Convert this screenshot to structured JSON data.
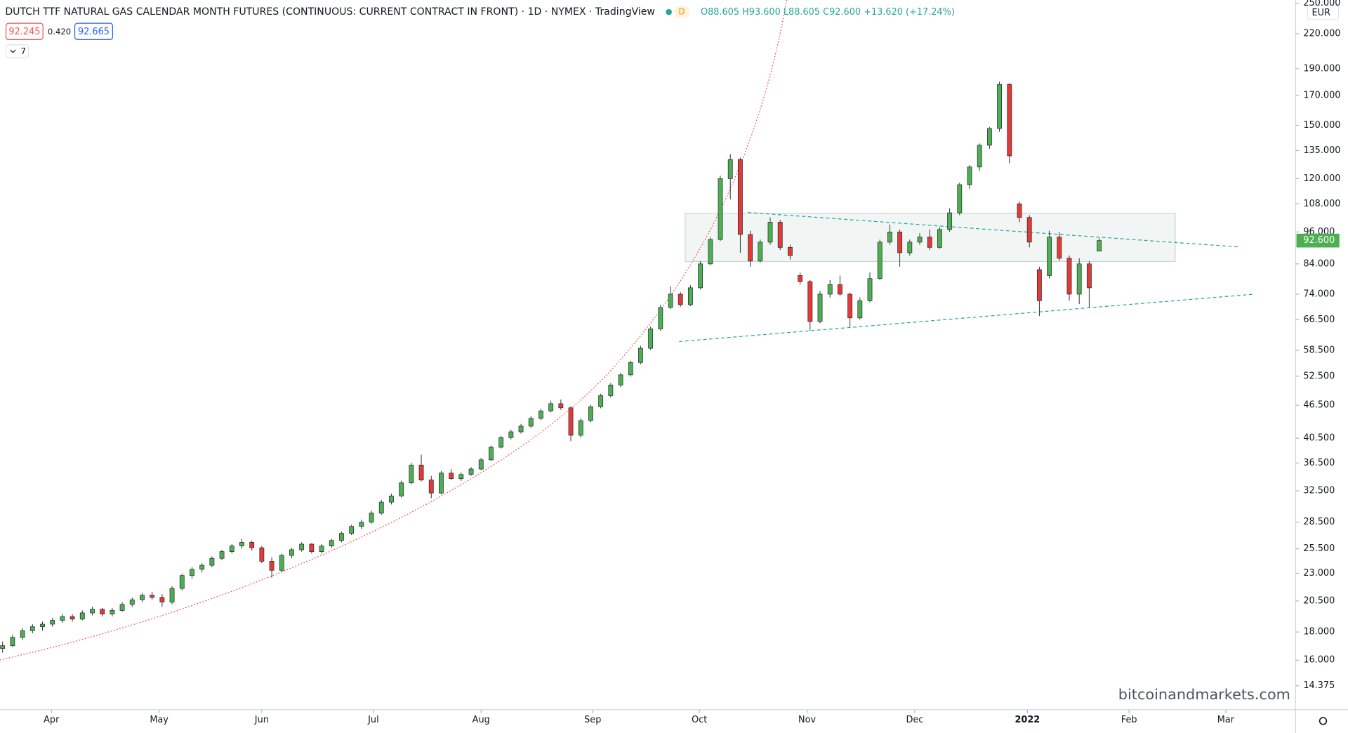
{
  "chart_data": {
    "type": "candlestick",
    "title": "DUTCH TTF NATURAL GAS CALENDAR MONTH FUTURES (CONTINUOUS: CURRENT CONTRACT IN FRONT) · 1D · NYMEX · TradingView",
    "interval_badge": "D",
    "ohlc_legend": {
      "open": "O88.605",
      "high": "H93.600",
      "low": "L88.605",
      "close": "C92.600",
      "change": "+13.620 (+17.24%)"
    },
    "bid": "92.245",
    "spread": "0.420",
    "ask": "92.665",
    "indicators": "7",
    "currency": "EUR",
    "watermark": "bitcoinandmarkets.com",
    "last_price_label": "92.600",
    "up_color": "#4caf50",
    "down_color": "#e53935",
    "log_scale": true,
    "grid": false,
    "ylim": [
      13.0,
      253.4
    ],
    "xlim": [
      -0.26,
      129.7
    ],
    "yticks": [
      {
        "value": 14.375,
        "label": "14.375"
      },
      {
        "value": 16,
        "label": "16.000"
      },
      {
        "value": 18,
        "label": "18.000"
      },
      {
        "value": 20.5,
        "label": "20.500"
      },
      {
        "value": 23,
        "label": "23.000"
      },
      {
        "value": 25.5,
        "label": "25.500"
      },
      {
        "value": 28.5,
        "label": "28.500"
      },
      {
        "value": 32.5,
        "label": "32.500"
      },
      {
        "value": 36.5,
        "label": "36.500"
      },
      {
        "value": 40.5,
        "label": "40.500"
      },
      {
        "value": 46.5,
        "label": "46.500"
      },
      {
        "value": 52.5,
        "label": "52.500"
      },
      {
        "value": 58.5,
        "label": "58.500"
      },
      {
        "value": 66.5,
        "label": "66.500"
      },
      {
        "value": 74,
        "label": "74.000"
      },
      {
        "value": 84,
        "label": "84.000"
      },
      {
        "value": 96,
        "label": "96.000"
      },
      {
        "value": 108,
        "label": "108.000"
      },
      {
        "value": 120,
        "label": "120.000"
      },
      {
        "value": 135,
        "label": "135.000"
      },
      {
        "value": 150,
        "label": "150.000"
      },
      {
        "value": 170,
        "label": "170.000"
      },
      {
        "value": 190,
        "label": "190.000"
      },
      {
        "value": 220,
        "label": "220.000"
      },
      {
        "value": 250,
        "label": "250.000"
      }
    ],
    "xticks": [
      {
        "value": 4.9,
        "label": "Apr"
      },
      {
        "value": 15.7,
        "label": "May"
      },
      {
        "value": 26,
        "label": "Jun"
      },
      {
        "value": 37.2,
        "label": "Jul"
      },
      {
        "value": 48,
        "label": "Aug"
      },
      {
        "value": 59.2,
        "label": "Sep"
      },
      {
        "value": 69.9,
        "label": "Oct"
      },
      {
        "value": 80.7,
        "label": "Nov"
      },
      {
        "value": 91.5,
        "label": "Dec"
      },
      {
        "value": 102.8,
        "label": "2022"
      },
      {
        "value": 113,
        "label": "Feb"
      },
      {
        "value": 122.7,
        "label": "Mar"
      }
    ],
    "ohlc": [
      [
        16.8,
        17.3,
        16.5,
        17.0
      ],
      [
        17.0,
        17.8,
        16.9,
        17.6
      ],
      [
        17.6,
        18.3,
        17.4,
        18.1
      ],
      [
        18.1,
        18.6,
        17.9,
        18.4
      ],
      [
        18.4,
        18.8,
        18.1,
        18.6
      ],
      [
        18.6,
        19.1,
        18.4,
        18.9
      ],
      [
        18.9,
        19.4,
        18.7,
        19.2
      ],
      [
        19.2,
        19.4,
        18.8,
        19.0
      ],
      [
        19.0,
        19.7,
        18.9,
        19.5
      ],
      [
        19.5,
        20.0,
        19.3,
        19.8
      ],
      [
        19.8,
        19.9,
        19.2,
        19.4
      ],
      [
        19.4,
        19.9,
        19.2,
        19.7
      ],
      [
        19.7,
        20.4,
        19.6,
        20.2
      ],
      [
        20.2,
        20.8,
        20.0,
        20.6
      ],
      [
        20.6,
        21.2,
        20.4,
        21.0
      ],
      [
        21.0,
        21.3,
        20.6,
        20.8
      ],
      [
        20.8,
        21.1,
        20.0,
        20.4
      ],
      [
        20.4,
        21.8,
        20.2,
        21.6
      ],
      [
        21.6,
        23.0,
        21.4,
        22.8
      ],
      [
        22.8,
        23.6,
        22.5,
        23.4
      ],
      [
        23.4,
        24.0,
        23.1,
        23.8
      ],
      [
        23.8,
        24.7,
        23.6,
        24.5
      ],
      [
        24.5,
        25.4,
        24.3,
        25.2
      ],
      [
        25.2,
        26.0,
        25.0,
        25.8
      ],
      [
        25.8,
        26.6,
        25.5,
        26.2
      ],
      [
        26.2,
        26.4,
        25.3,
        25.6
      ],
      [
        25.6,
        25.8,
        24.0,
        24.2
      ],
      [
        24.2,
        24.6,
        22.6,
        23.3
      ],
      [
        23.3,
        25.0,
        23.1,
        24.8
      ],
      [
        24.8,
        25.6,
        24.5,
        25.4
      ],
      [
        25.4,
        26.2,
        25.2,
        26.0
      ],
      [
        26.0,
        26.1,
        25.0,
        25.2
      ],
      [
        25.2,
        26.0,
        25.0,
        25.8
      ],
      [
        25.8,
        26.6,
        25.6,
        26.4
      ],
      [
        26.4,
        27.4,
        26.2,
        27.2
      ],
      [
        27.2,
        28.2,
        27.0,
        28.0
      ],
      [
        28.0,
        28.8,
        27.7,
        28.5
      ],
      [
        28.5,
        29.9,
        28.3,
        29.6
      ],
      [
        29.6,
        31.3,
        29.4,
        31.0
      ],
      [
        31.0,
        32.1,
        30.7,
        31.8
      ],
      [
        31.8,
        33.9,
        31.6,
        33.6
      ],
      [
        33.6,
        36.5,
        33.4,
        36.2
      ],
      [
        36.2,
        37.8,
        33.8,
        34.0
      ],
      [
        34.0,
        34.6,
        31.5,
        32.2
      ],
      [
        32.2,
        35.3,
        32.0,
        35.0
      ],
      [
        35.0,
        35.6,
        34.0,
        34.2
      ],
      [
        34.2,
        35.1,
        33.9,
        34.8
      ],
      [
        34.8,
        35.9,
        34.6,
        35.6
      ],
      [
        35.6,
        37.3,
        35.4,
        37.0
      ],
      [
        37.0,
        39.3,
        36.8,
        39.0
      ],
      [
        39.0,
        40.9,
        38.8,
        40.6
      ],
      [
        40.6,
        42.0,
        40.3,
        41.6
      ],
      [
        41.6,
        43.0,
        41.3,
        42.6
      ],
      [
        42.6,
        44.4,
        42.3,
        44.0
      ],
      [
        44.0,
        45.8,
        43.7,
        45.4
      ],
      [
        45.4,
        47.4,
        45.1,
        46.8
      ],
      [
        46.8,
        47.6,
        45.6,
        46.0
      ],
      [
        46.0,
        46.3,
        40.0,
        41.0
      ],
      [
        41.0,
        44.0,
        40.6,
        43.6
      ],
      [
        43.6,
        46.6,
        43.3,
        46.2
      ],
      [
        46.2,
        48.8,
        45.9,
        48.4
      ],
      [
        48.4,
        51.0,
        48.0,
        50.6
      ],
      [
        50.6,
        53.2,
        50.2,
        52.8
      ],
      [
        52.8,
        56.0,
        52.4,
        55.6
      ],
      [
        55.6,
        59.6,
        55.2,
        59.0
      ],
      [
        59.0,
        64.6,
        58.6,
        64.0
      ],
      [
        64.0,
        70.8,
        63.5,
        70.0
      ],
      [
        70.0,
        76.5,
        69.5,
        74.0
      ],
      [
        74.0,
        74.6,
        70.2,
        70.8
      ],
      [
        70.8,
        76.8,
        70.4,
        76.0
      ],
      [
        76.0,
        85.0,
        75.5,
        84.0
      ],
      [
        84.0,
        94.0,
        83.5,
        93.0
      ],
      [
        93.0,
        121.5,
        92.5,
        120.0
      ],
      [
        120.0,
        133.0,
        110.0,
        130.0
      ],
      [
        130.0,
        131.0,
        88.0,
        95.0
      ],
      [
        95.0,
        96.5,
        83.0,
        85.0
      ],
      [
        85.0,
        93.0,
        84.5,
        92.0
      ],
      [
        92.0,
        102.0,
        91.0,
        100.0
      ],
      [
        100.0,
        101.0,
        89.0,
        90.0
      ],
      [
        90.0,
        91.0,
        85.5,
        87.0
      ],
      [
        80.0,
        81.0,
        77.0,
        78.0
      ],
      [
        78.0,
        78.5,
        63.5,
        66.0
      ],
      [
        66.0,
        75.0,
        65.5,
        74.0
      ],
      [
        74.0,
        78.5,
        73.0,
        77.0
      ],
      [
        77.0,
        80.0,
        73.5,
        74.0
      ],
      [
        74.0,
        74.5,
        64.5,
        67.0
      ],
      [
        67.0,
        73.0,
        66.5,
        72.0
      ],
      [
        72.0,
        81.0,
        71.5,
        79.0
      ],
      [
        79.0,
        93.0,
        78.5,
        92.0
      ],
      [
        92.0,
        99.0,
        91.0,
        96.0
      ],
      [
        96.0,
        97.0,
        83.0,
        88.0
      ],
      [
        88.0,
        93.0,
        87.0,
        92.0
      ],
      [
        92.0,
        95.5,
        91.0,
        94.0
      ],
      [
        94.0,
        97.0,
        89.0,
        90.0
      ],
      [
        90.0,
        98.0,
        89.5,
        97.0
      ],
      [
        97.0,
        106.0,
        96.0,
        104.0
      ],
      [
        104.0,
        118.0,
        103.0,
        117.0
      ],
      [
        117.0,
        127.0,
        115.0,
        126.0
      ],
      [
        126.0,
        139.0,
        124.0,
        138.0
      ],
      [
        138.0,
        149.0,
        136.0,
        148.0
      ],
      [
        148.0,
        180.0,
        146.0,
        178.0
      ],
      [
        178.0,
        179.0,
        128.0,
        132.0
      ],
      [
        108.0,
        109.0,
        100.0,
        102.0
      ],
      [
        102.0,
        103.0,
        90.0,
        92.0
      ],
      [
        82.0,
        83.0,
        67.5,
        72.0
      ],
      [
        80.0,
        96.5,
        79.0,
        94.0
      ],
      [
        94.0,
        96.0,
        85.0,
        86.0
      ],
      [
        86.0,
        87.0,
        72.0,
        74.0
      ],
      [
        74.0,
        86.0,
        71.0,
        84.0
      ],
      [
        84.0,
        85.0,
        70.0,
        76.0
      ],
      [
        88.605,
        93.6,
        88.605,
        92.6
      ]
    ]
  }
}
